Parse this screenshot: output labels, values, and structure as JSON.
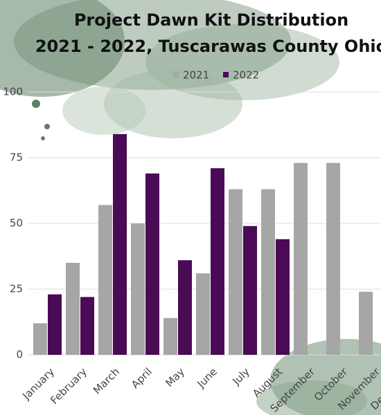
{
  "chart_data": {
    "type": "bar",
    "title": "Project Dawn Kit Distribution",
    "subtitle": "2021 - 2022, Tuscarawas County Ohio",
    "categories": [
      "January",
      "February",
      "March",
      "April",
      "May",
      "June",
      "July",
      "August",
      "September",
      "October",
      "November",
      "December"
    ],
    "series": [
      {
        "name": "2021",
        "color": "#a6a6a6",
        "values": [
          12,
          35,
          57,
          50,
          14,
          31,
          63,
          63,
          73,
          73,
          24,
          null
        ]
      },
      {
        "name": "2022",
        "color": "#4b0a55",
        "values": [
          23,
          22,
          84,
          69,
          36,
          71,
          49,
          44,
          null,
          null,
          null,
          null
        ]
      }
    ],
    "ylim": [
      0,
      100
    ],
    "yticks": [
      0,
      25,
      50,
      75,
      100
    ],
    "grid": true
  }
}
